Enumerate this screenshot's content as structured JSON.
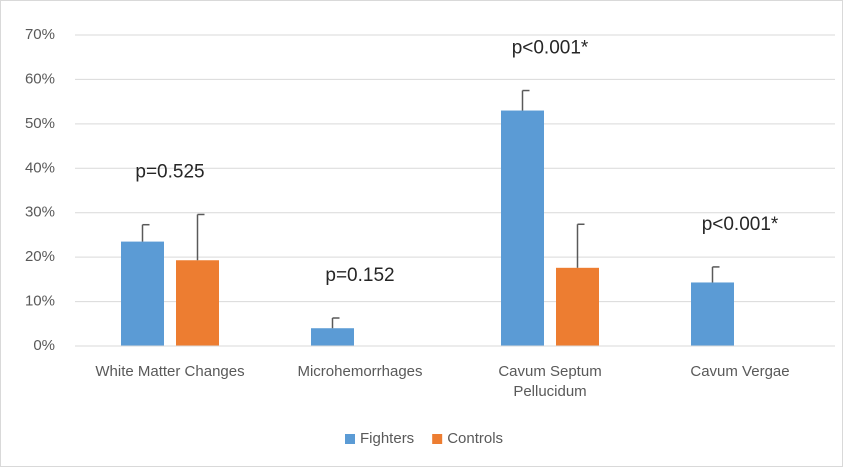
{
  "chart_data": {
    "type": "bar",
    "categories": [
      "White Matter Changes",
      "Microhemorrhages",
      "Cavum Septum Pellucidum",
      "Cavum Vergae"
    ],
    "series": [
      {
        "name": "Fighters",
        "color": "#5b9bd5",
        "values": [
          23.5,
          4.0,
          53.0,
          14.3
        ],
        "errors": [
          3.8,
          2.3,
          4.5,
          3.5
        ]
      },
      {
        "name": "Controls",
        "color": "#ed7d31",
        "values": [
          19.3,
          0,
          17.6,
          0
        ],
        "errors": [
          10.3,
          null,
          9.8,
          null
        ]
      }
    ],
    "annotations": [
      "p=0.525",
      "p=0.152",
      "p<0.001*",
      "p<0.001*"
    ],
    "ylim": [
      0,
      70
    ],
    "yticks": [
      {
        "value": 0,
        "label": "0%"
      },
      {
        "value": 10,
        "label": "10%"
      },
      {
        "value": 20,
        "label": "20%"
      },
      {
        "value": 30,
        "label": "30%"
      },
      {
        "value": 40,
        "label": "40%"
      },
      {
        "value": 50,
        "label": "50%"
      },
      {
        "value": 60,
        "label": "60%"
      },
      {
        "value": 70,
        "label": "70%"
      }
    ],
    "grid": true,
    "legend": "bottom"
  }
}
